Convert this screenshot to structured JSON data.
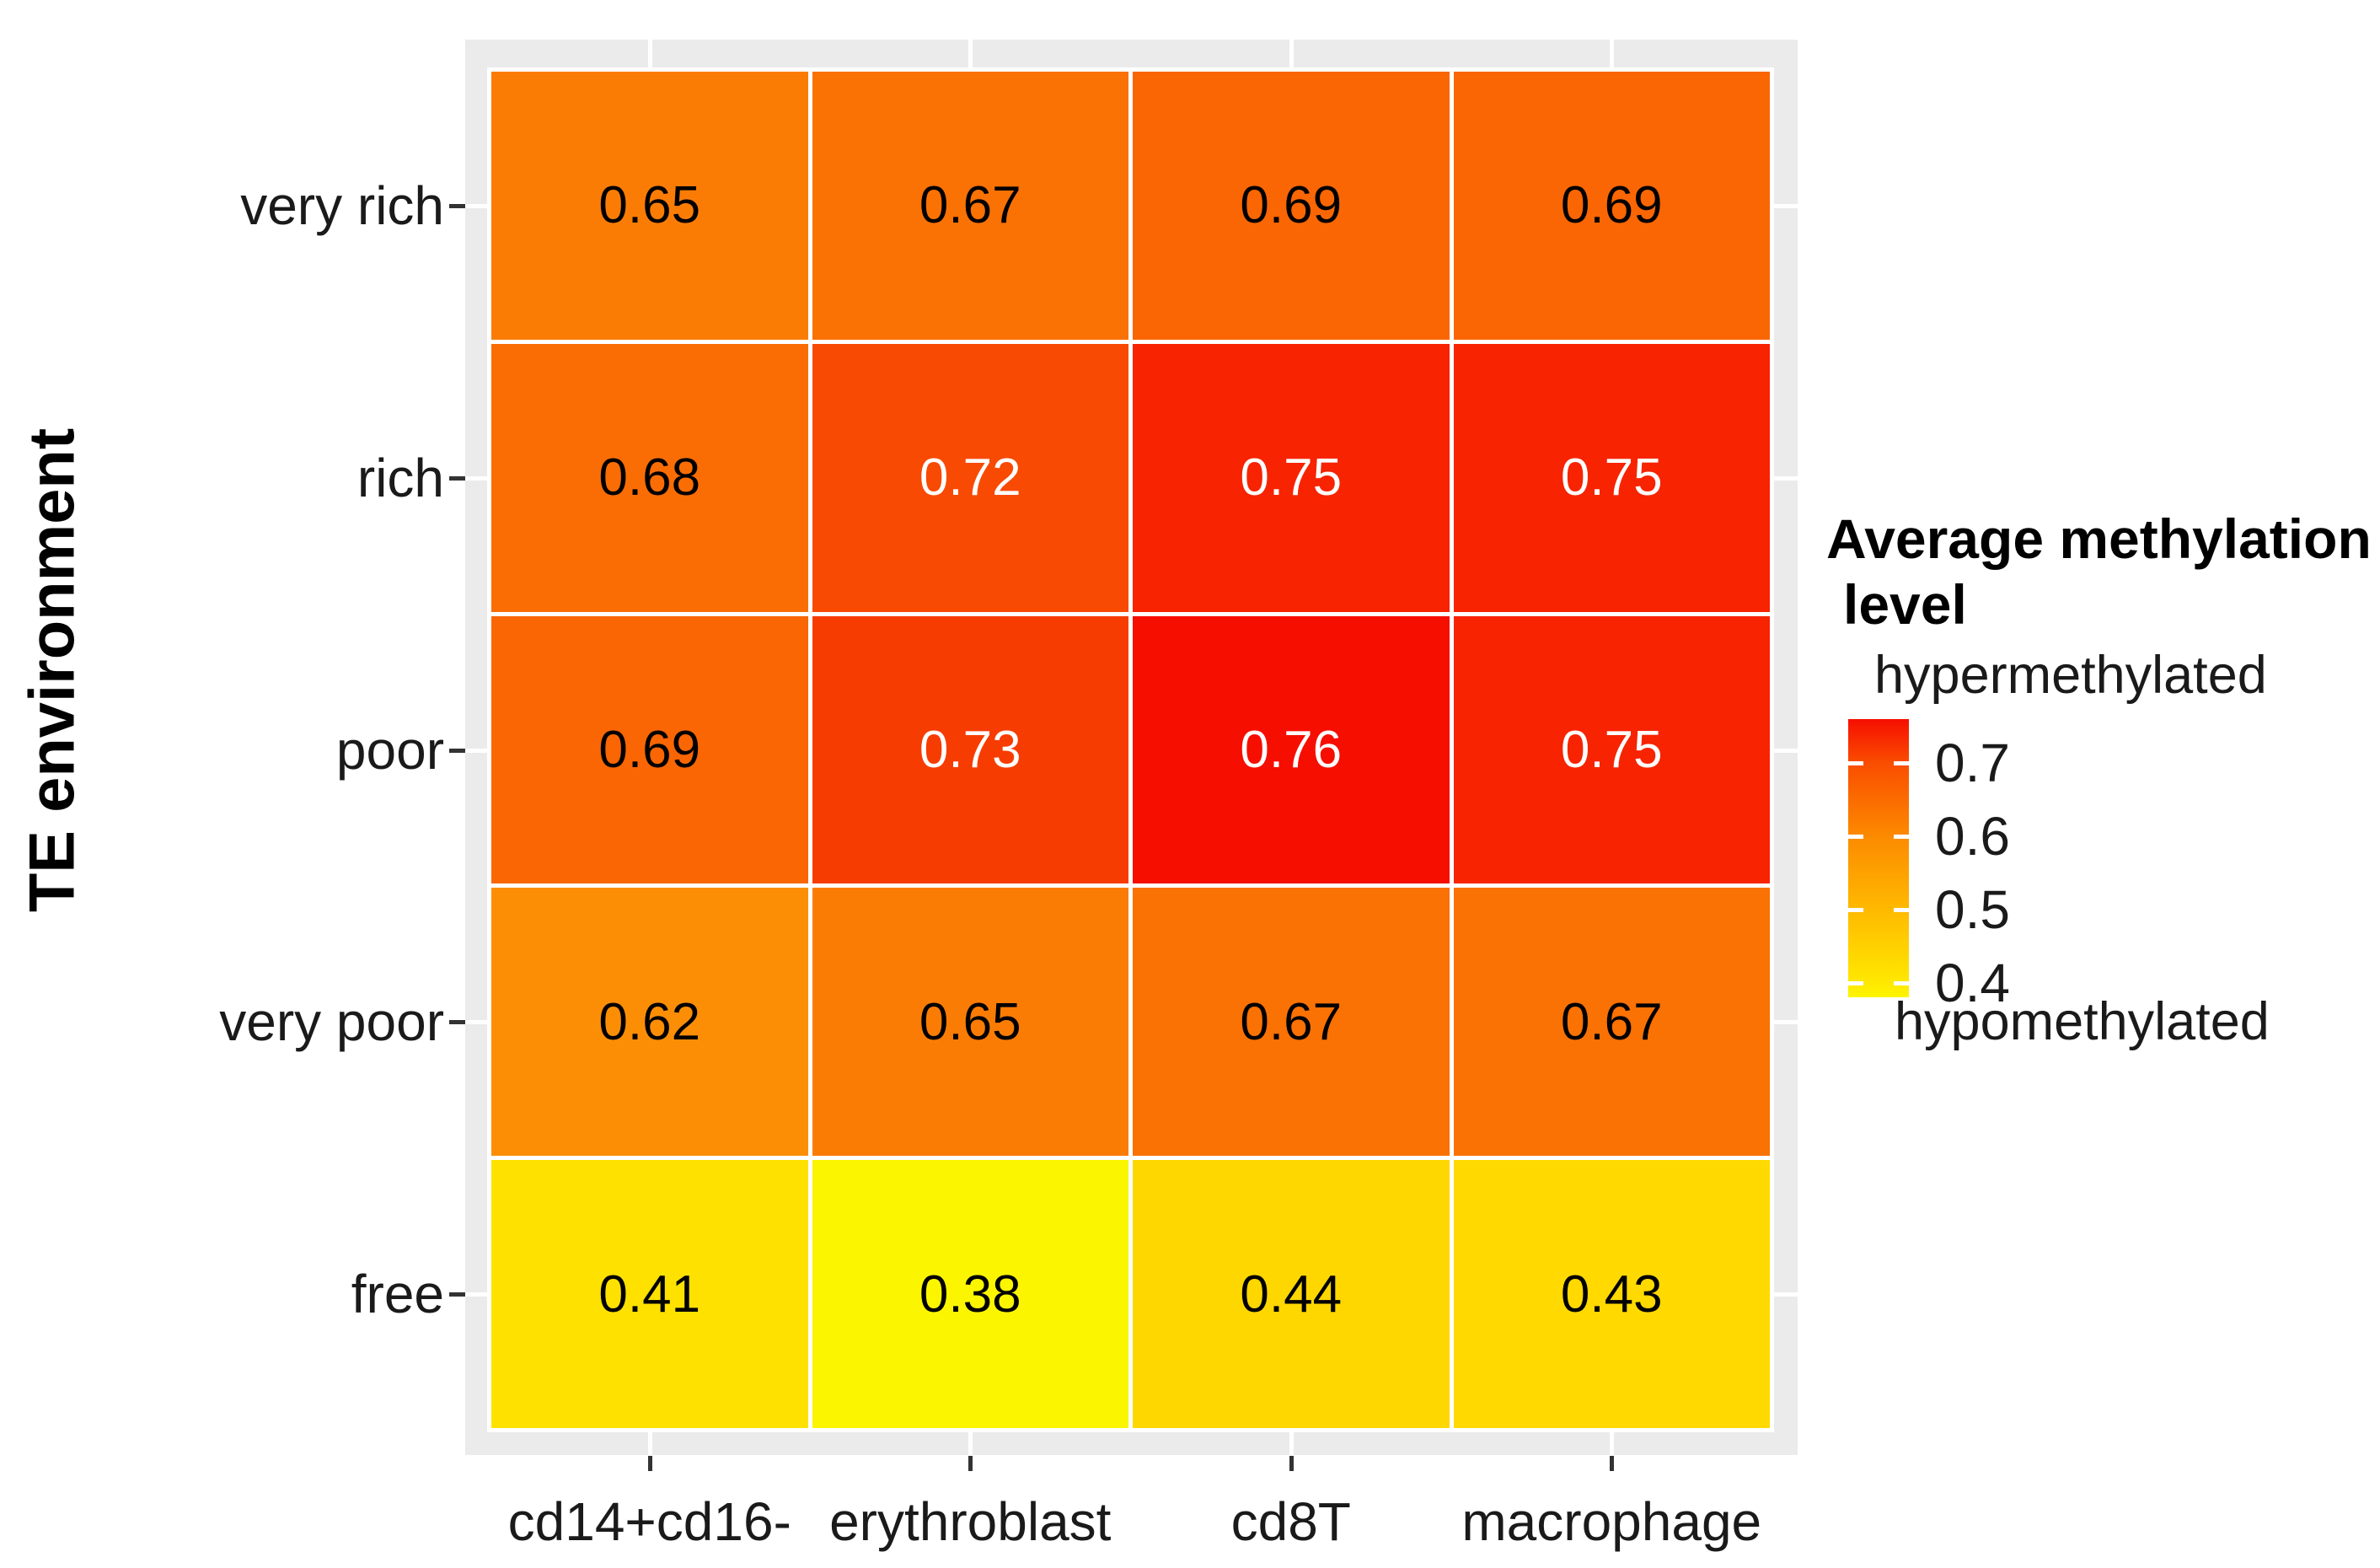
{
  "figure": {
    "y_axis_title": "TE environment",
    "y_tick_labels": [
      "very rich",
      "rich",
      "poor",
      "very poor",
      "free"
    ],
    "x_tick_labels": [
      "cd14+cd16-",
      "erythroblast",
      "cd8T",
      "macrophage"
    ],
    "legend": {
      "title_line1": "Average methylation",
      "title_line2": "level",
      "top_label": "hypermethylated",
      "bottom_label": "hypomethylated",
      "tick_labels": [
        "0.7",
        "0.6",
        "0.5",
        "0.4"
      ]
    }
  },
  "colors": {
    "panel_bg": "#EBEBEB",
    "tile_border": "#FFFFFF",
    "axis_tick": "#333333",
    "axis_label_text": "#1A1A1A",
    "cell_text_dark": "#000000",
    "cell_text_light": "#FFFFFF",
    "fill_map": {
      "0.38": "#FBF500",
      "0.41": "#FFE100",
      "0.43": "#FFD900",
      "0.44": "#FFD700",
      "0.62": "#FC8E06",
      "0.65": "#FB7C05",
      "0.67": "#FA7104",
      "0.68": "#FA6D04",
      "0.69": "#F96603",
      "0.72": "#F84A02",
      "0.73": "#F73C01",
      "0.75": "#F72301",
      "0.76": "#F60E00"
    },
    "legend_gradient": [
      [
        "0%",
        "#F60E00"
      ],
      [
        "15.8%",
        "#FA4D00"
      ],
      [
        "42.1%",
        "#FC8A00"
      ],
      [
        "68.4%",
        "#FFB900"
      ],
      [
        "94.7%",
        "#FFE800"
      ],
      [
        "100%",
        "#FCF500"
      ]
    ]
  },
  "chart_data": {
    "type": "heatmap",
    "x": [
      "cd14+cd16-",
      "erythroblast",
      "cd8T",
      "macrophage"
    ],
    "y": [
      "very rich",
      "rich",
      "poor",
      "very poor",
      "free"
    ],
    "values": [
      [
        0.65,
        0.67,
        0.69,
        0.69
      ],
      [
        0.68,
        0.72,
        0.75,
        0.75
      ],
      [
        0.69,
        0.73,
        0.76,
        0.75
      ],
      [
        0.62,
        0.65,
        0.67,
        0.67
      ],
      [
        0.41,
        0.38,
        0.44,
        0.43
      ]
    ],
    "white_text_min": 0.72,
    "xlabel": "",
    "ylabel": "TE environment",
    "legend_title": "Average methylation level",
    "legend_top_label": "hypermethylated",
    "legend_bottom_label": "hypomethylated",
    "legend_ticks": [
      0.7,
      0.6,
      0.5,
      0.4
    ],
    "colorscale": {
      "low": "yellow",
      "high": "red",
      "domain": [
        0.38,
        0.76
      ]
    },
    "grid": false,
    "legend_position": "right"
  }
}
